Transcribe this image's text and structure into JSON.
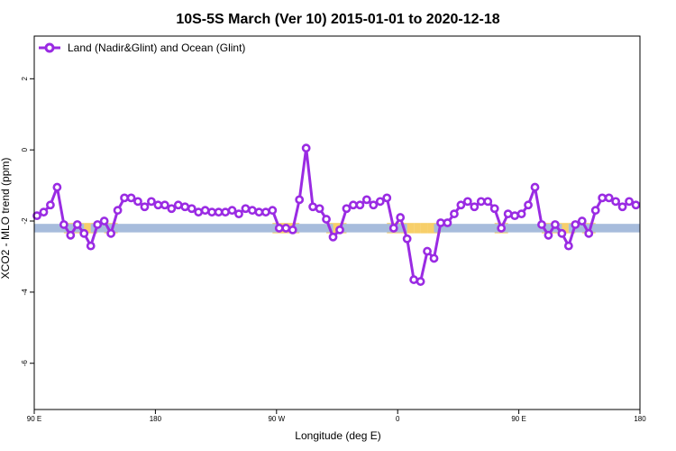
{
  "chart_data": {
    "type": "line",
    "title": "10S-5S March (Ver 10)   2015-01-01 to 2020-12-18",
    "xlabel": "Longitude (deg E)",
    "ylabel": "XCO2 - MLO trend (ppm)",
    "xlim": [
      90,
      540
    ],
    "ylim": [
      -7.3,
      3.2
    ],
    "x_ticks": [
      {
        "value": 90,
        "label": "90 E"
      },
      {
        "value": 180,
        "label": "180"
      },
      {
        "value": 270,
        "label": "90 W"
      },
      {
        "value": 360,
        "label": "0"
      },
      {
        "value": 450,
        "label": "90 E"
      },
      {
        "value": 540,
        "label": "180"
      }
    ],
    "y_ticks": [
      {
        "value": 2,
        "label": "2"
      },
      {
        "value": 0,
        "label": "0"
      },
      {
        "value": -2,
        "label": "-2"
      },
      {
        "value": -4,
        "label": "-4"
      },
      {
        "value": -6,
        "label": "-6"
      }
    ],
    "grid": false,
    "legend_position": "top-left",
    "band": {
      "y_center": -2.2,
      "y_halfwidth": 0.12,
      "color": "#a7bcdc",
      "highlight_color": "#f7cf6a"
    },
    "series": [
      {
        "name": "Land (Nadir&Glint) and Ocean (Glint)",
        "color": "#9a2be3",
        "x": [
          92,
          97,
          102,
          107,
          112,
          117,
          122,
          127,
          132,
          137,
          142,
          147,
          152,
          157,
          162,
          167,
          172,
          177,
          182,
          187,
          192,
          197,
          202,
          207,
          212,
          217,
          222,
          227,
          232,
          237,
          242,
          247,
          252,
          257,
          262,
          267,
          272,
          277,
          282,
          287,
          292,
          297,
          302,
          307,
          312,
          317,
          322,
          327,
          332,
          337,
          342,
          347,
          352,
          357,
          362,
          367,
          372,
          377,
          382,
          387,
          392,
          397,
          402,
          407,
          412,
          417,
          422,
          427,
          432,
          437,
          442,
          447,
          452,
          457,
          462,
          467,
          472,
          477,
          482,
          487,
          492,
          497,
          502,
          507,
          512,
          517,
          522,
          527,
          532,
          537
        ],
        "y": [
          -1.85,
          -1.75,
          -1.55,
          -1.05,
          -2.1,
          -2.4,
          -2.1,
          -2.35,
          -2.7,
          -2.1,
          -2.0,
          -2.35,
          -1.7,
          -1.35,
          -1.35,
          -1.45,
          -1.6,
          -1.45,
          -1.55,
          -1.55,
          -1.65,
          -1.55,
          -1.6,
          -1.65,
          -1.75,
          -1.7,
          -1.75,
          -1.75,
          -1.75,
          -1.7,
          -1.8,
          -1.65,
          -1.7,
          -1.75,
          -1.75,
          -1.7,
          -2.2,
          -2.2,
          -2.25,
          -1.4,
          0.05,
          -1.6,
          -1.65,
          -1.95,
          -2.45,
          -2.25,
          -1.65,
          -1.55,
          -1.55,
          -1.4,
          -1.55,
          -1.45,
          -1.35,
          -2.2,
          -1.9,
          -2.5,
          -3.65,
          -3.7,
          -2.85,
          -3.05,
          -2.05,
          -2.05,
          -1.8,
          -1.55,
          -1.45,
          -1.6,
          -1.45,
          -1.45,
          -1.65,
          -2.2,
          -1.8,
          -1.85,
          -1.8,
          -1.55,
          -1.05,
          -2.1,
          -2.4,
          -2.1,
          -2.35,
          -2.7,
          -2.1,
          -2.0,
          -2.35,
          -1.7,
          -1.35,
          -1.35,
          -1.45,
          -1.6,
          -1.45,
          -1.55
        ]
      }
    ]
  }
}
